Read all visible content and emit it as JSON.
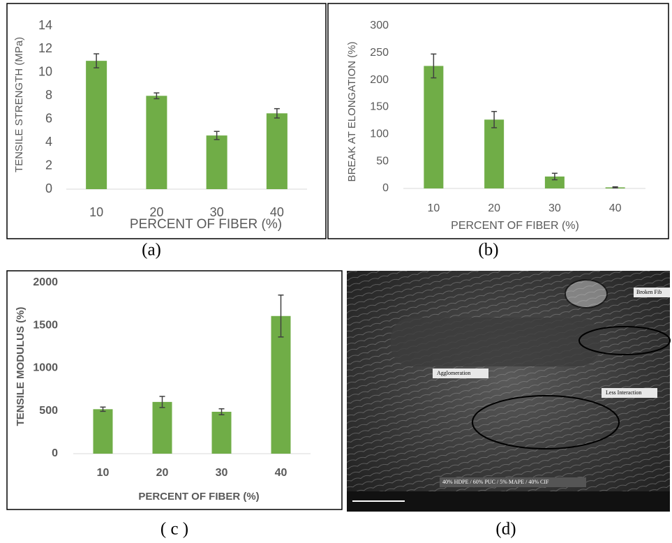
{
  "chart_data": [
    {
      "type": "bar",
      "x_label": "PERCENT OF FIBER (%)",
      "y_label": "TENSILE STRENGTH (MPa)",
      "categories": [
        "10",
        "20",
        "30",
        "40"
      ],
      "values": [
        11,
        8,
        4.6,
        6.5
      ],
      "errors": [
        0.6,
        0.25,
        0.35,
        0.4
      ],
      "color": "#70ad47",
      "ylim": [
        0,
        14
      ],
      "yticks": [
        0,
        2,
        4,
        6,
        8,
        10,
        12,
        14
      ]
    },
    {
      "type": "bar",
      "x_label": "PERCENT OF FIBER (%)",
      "y_label": "BREAK  AT ELONGATION (%)",
      "categories": [
        "10",
        "20",
        "30",
        "40"
      ],
      "values": [
        226,
        127,
        22,
        2
      ],
      "errors": [
        22,
        15,
        6,
        1
      ],
      "color": "#70ad47",
      "ylim": [
        0,
        300
      ],
      "yticks": [
        0,
        50,
        100,
        150,
        200,
        250,
        300
      ]
    },
    {
      "type": "bar",
      "x_label": "PERCENT OF FIBER (%)",
      "y_label": "TENSILE MODULUS (%)",
      "categories": [
        "10",
        "20",
        "30",
        "40"
      ],
      "values": [
        520,
        605,
        490,
        1610
      ],
      "errors": [
        25,
        65,
        35,
        245
      ],
      "color": "#70ad47",
      "ylim": [
        0,
        2000
      ],
      "yticks": [
        0,
        500,
        1000,
        1500,
        2000
      ]
    }
  ],
  "panel_labels": [
    "(a)",
    "(b)",
    "( c )",
    "(d)"
  ],
  "image": {
    "annotations": [
      "Broken Fib",
      "Agglomeration",
      "Less Interaction",
      "40% HDPE / 60% PUC / 5% MAPE / 40% CIF"
    ]
  }
}
